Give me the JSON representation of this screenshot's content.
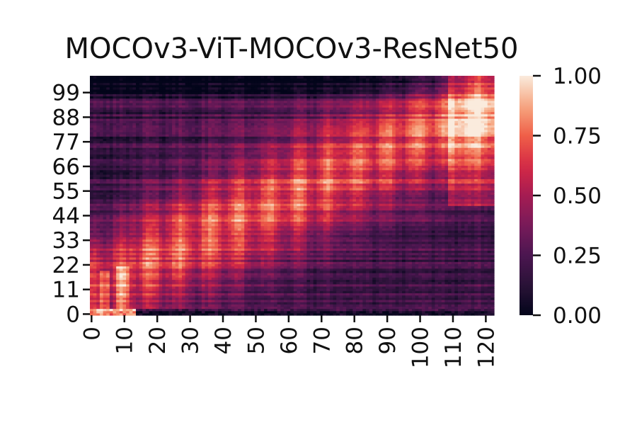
{
  "chart_data": {
    "type": "heatmap",
    "title": "MOCOv3-ViT-MOCOv3-ResNet50",
    "xlabel": "",
    "ylabel": "",
    "x_range": [
      0,
      123
    ],
    "y_range": [
      0,
      107
    ],
    "x_ticks": [
      0,
      10,
      20,
      30,
      40,
      50,
      60,
      70,
      80,
      90,
      100,
      110,
      120
    ],
    "y_ticks": [
      0,
      11,
      22,
      33,
      44,
      55,
      66,
      77,
      88,
      99
    ],
    "x_tick_labels": [
      "0",
      "10",
      "20",
      "30",
      "40",
      "50",
      "60",
      "70",
      "80",
      "90",
      "100",
      "110",
      "120"
    ],
    "y_tick_labels": [
      "0",
      "11",
      "22",
      "33",
      "44",
      "55",
      "66",
      "77",
      "88",
      "99"
    ],
    "colorbar": {
      "min": 0.0,
      "max": 1.0,
      "ticks": [
        0.0,
        0.25,
        0.5,
        0.75,
        1.0
      ],
      "tick_labels": [
        "0.00",
        "0.25",
        "0.50",
        "0.75",
        "1.00"
      ],
      "colormap": "rocket",
      "low_color": "#03051a",
      "high_color": "#faebdd"
    },
    "description_of_values": "similarity matrix, low values in the top rows and bottom row band, high values in vertical stripes rising toward the top-right"
  }
}
